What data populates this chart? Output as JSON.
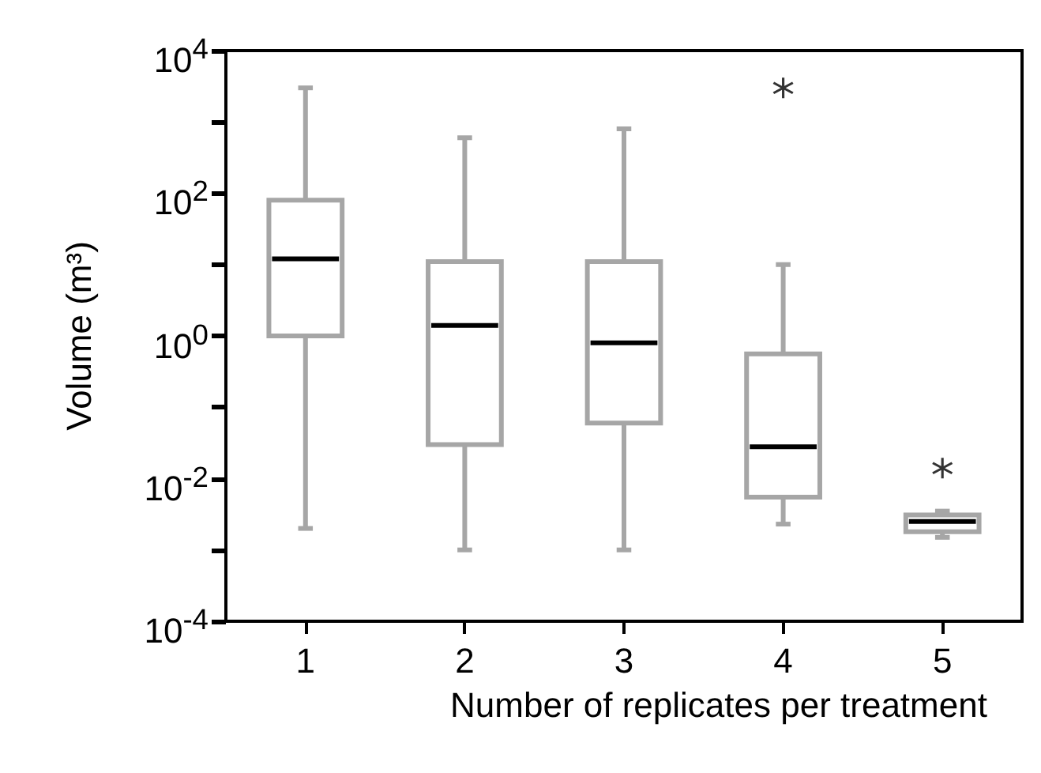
{
  "chart_data": {
    "type": "box",
    "xlabel": "Number of replicates per treatment",
    "ylabel": "Volume (m³)",
    "categories": [
      "1",
      "2",
      "3",
      "4",
      "5"
    ],
    "series": [
      {
        "color": "#a6a6a6",
        "boxes": [
          {
            "low": 0.002,
            "q1": 1,
            "median": 12,
            "q3": 80,
            "high": 3000
          },
          {
            "low": 0.001,
            "q1": 0.03,
            "median": 1.4,
            "q3": 11,
            "high": 600
          },
          {
            "low": 0.001,
            "q1": 0.06,
            "median": 0.8,
            "q3": 11,
            "high": 800
          },
          {
            "low": 0.0023,
            "q1": 0.0055,
            "median": 0.028,
            "q3": 0.56,
            "high": 10,
            "outliers": [
              3000
            ]
          },
          {
            "low": 0.0015,
            "q1": 0.0018,
            "median": 0.0025,
            "q3": 0.0031,
            "high": 0.0035,
            "outliers": [
              0.014
            ]
          }
        ]
      }
    ],
    "log": "y",
    "ylim": [
      0.0001,
      10000
    ],
    "yticks": [
      {
        "value": 0.0001,
        "label": "10$^{-4}$"
      },
      {
        "value": 0.001,
        "label": null
      },
      {
        "value": 0.01,
        "label": "10$^{-2}$"
      },
      {
        "value": 0.1,
        "label": null
      },
      {
        "value": 1,
        "label": "10$^{0}$"
      },
      {
        "value": 10,
        "label": null
      },
      {
        "value": 100,
        "label": "10$^{2}$"
      },
      {
        "value": 1000,
        "label": null
      },
      {
        "value": 10000,
        "label": "10$^{4}$"
      }
    ],
    "grid": false,
    "marker": "star"
  }
}
